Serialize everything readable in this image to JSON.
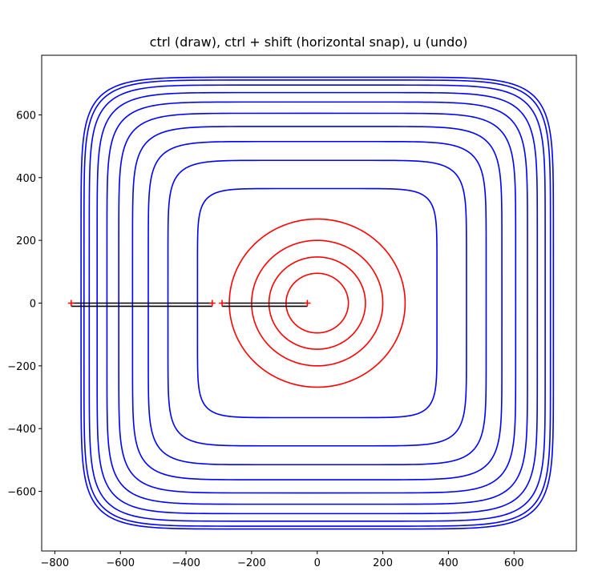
{
  "chart_data": {
    "type": "line",
    "title": "ctrl (draw), ctrl + shift (horizontal snap), u (undo)",
    "xlabel": "",
    "ylabel": "",
    "xlim": [
      -840,
      790
    ],
    "ylim": [
      -790,
      790
    ],
    "x_ticks": [
      -800,
      -600,
      -400,
      -200,
      0,
      200,
      400,
      600
    ],
    "y_ticks": [
      -600,
      -400,
      -200,
      0,
      200,
      400,
      600
    ],
    "x_tick_labels": [
      "−800",
      "−600",
      "−400",
      "−200",
      "0",
      "200",
      "400",
      "600"
    ],
    "y_tick_labels": [
      "−600",
      "−400",
      "−200",
      "0",
      "200",
      "400",
      "600"
    ],
    "grid": false,
    "colors": {
      "outer": "#0000ff",
      "inner": "#ff0000",
      "segment": "#000000",
      "marker": "#ff0000"
    },
    "series": [
      {
        "kind": "contour",
        "shape": "superellipse",
        "exponent": 8,
        "radii": [
          365,
          455,
          515,
          563,
          605,
          641,
          671,
          695,
          711,
          720
        ],
        "color": "#0000ff"
      },
      {
        "kind": "contour",
        "shape": "circle",
        "radii": [
          95,
          147,
          200,
          268
        ],
        "color": "#ff0000"
      },
      {
        "kind": "segment",
        "x": [
          -750,
          -320
        ],
        "y": [
          0,
          0
        ]
      },
      {
        "kind": "segment",
        "x": [
          -750,
          -320
        ],
        "y": [
          -10,
          -10
        ]
      },
      {
        "kind": "segment",
        "x": [
          -290,
          -30
        ],
        "y": [
          0,
          0
        ]
      },
      {
        "kind": "segment",
        "x": [
          -290,
          -30
        ],
        "y": [
          -10,
          -10
        ]
      },
      {
        "kind": "markers",
        "marker": "+",
        "x": [
          -750,
          -320,
          -290,
          -30
        ],
        "y": [
          0,
          0,
          0,
          0
        ]
      }
    ]
  }
}
